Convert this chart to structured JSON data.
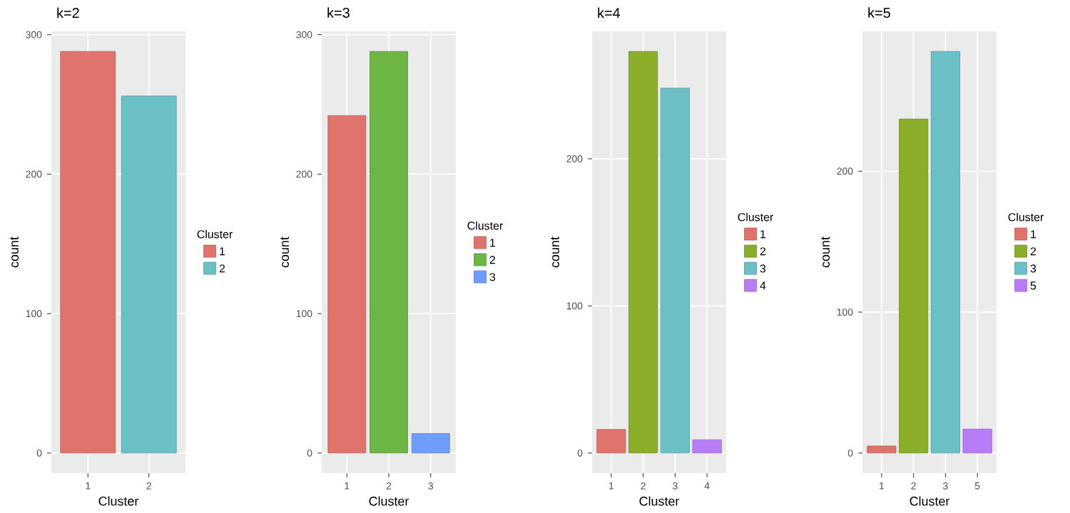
{
  "chart_data": [
    {
      "type": "bar",
      "title": "k=2",
      "xlabel": "Cluster",
      "ylabel": "count",
      "legend_title": "Cluster",
      "legend": "right",
      "grid": true,
      "categories": [
        "1",
        "2"
      ],
      "series": [
        {
          "name": "1",
          "color": "#e0736c",
          "values": [
            288,
            null
          ]
        },
        {
          "name": "2",
          "color": "#6bbfc6",
          "values": [
            null,
            256
          ]
        }
      ],
      "ylim": [
        -14.4,
        302.4
      ],
      "yticks": [
        0,
        100,
        200,
        300
      ]
    },
    {
      "type": "bar",
      "title": "k=3",
      "xlabel": "Cluster",
      "ylabel": "count",
      "legend_title": "Cluster",
      "legend": "right",
      "grid": true,
      "categories": [
        "1",
        "2",
        "3"
      ],
      "series": [
        {
          "name": "1",
          "color": "#e0736c",
          "values": [
            242,
            null,
            null
          ]
        },
        {
          "name": "2",
          "color": "#6db544",
          "values": [
            null,
            288,
            null
          ]
        },
        {
          "name": "3",
          "color": "#6f9cff",
          "values": [
            null,
            null,
            14
          ]
        }
      ],
      "ylim": [
        -14.4,
        302.4
      ],
      "yticks": [
        0,
        100,
        200,
        300
      ]
    },
    {
      "type": "bar",
      "title": "k=4",
      "xlabel": "Cluster",
      "ylabel": "count",
      "legend_title": "Cluster",
      "legend": "right",
      "grid": true,
      "categories": [
        "1",
        "2",
        "3",
        "4"
      ],
      "series": [
        {
          "name": "1",
          "color": "#e0736c",
          "values": [
            16,
            null,
            null,
            null
          ]
        },
        {
          "name": "2",
          "color": "#8aae2a",
          "values": [
            null,
            273,
            null,
            null
          ]
        },
        {
          "name": "3",
          "color": "#6bbfc6",
          "values": [
            null,
            null,
            248,
            null
          ]
        },
        {
          "name": "4",
          "color": "#b97cf7",
          "values": [
            null,
            null,
            null,
            9
          ]
        }
      ],
      "ylim": [
        -13.65,
        286.65
      ],
      "yticks": [
        0,
        100,
        200
      ]
    },
    {
      "type": "bar",
      "title": "k=5",
      "xlabel": "Cluster",
      "ylabel": "count",
      "legend_title": "Cluster",
      "legend": "right",
      "grid": true,
      "categories": [
        "1",
        "2",
        "3",
        "5"
      ],
      "series": [
        {
          "name": "1",
          "color": "#e0736c",
          "values": [
            5,
            null,
            null,
            null
          ]
        },
        {
          "name": "2",
          "color": "#8aae2a",
          "values": [
            null,
            237,
            null,
            null
          ]
        },
        {
          "name": "3",
          "color": "#6bbfc6",
          "values": [
            null,
            null,
            285,
            null
          ]
        },
        {
          "name": "5",
          "color": "#b97cf7",
          "values": [
            null,
            null,
            null,
            17
          ]
        }
      ],
      "ylim": [
        -14.25,
        299.25
      ],
      "yticks": [
        0,
        100,
        200
      ]
    }
  ]
}
